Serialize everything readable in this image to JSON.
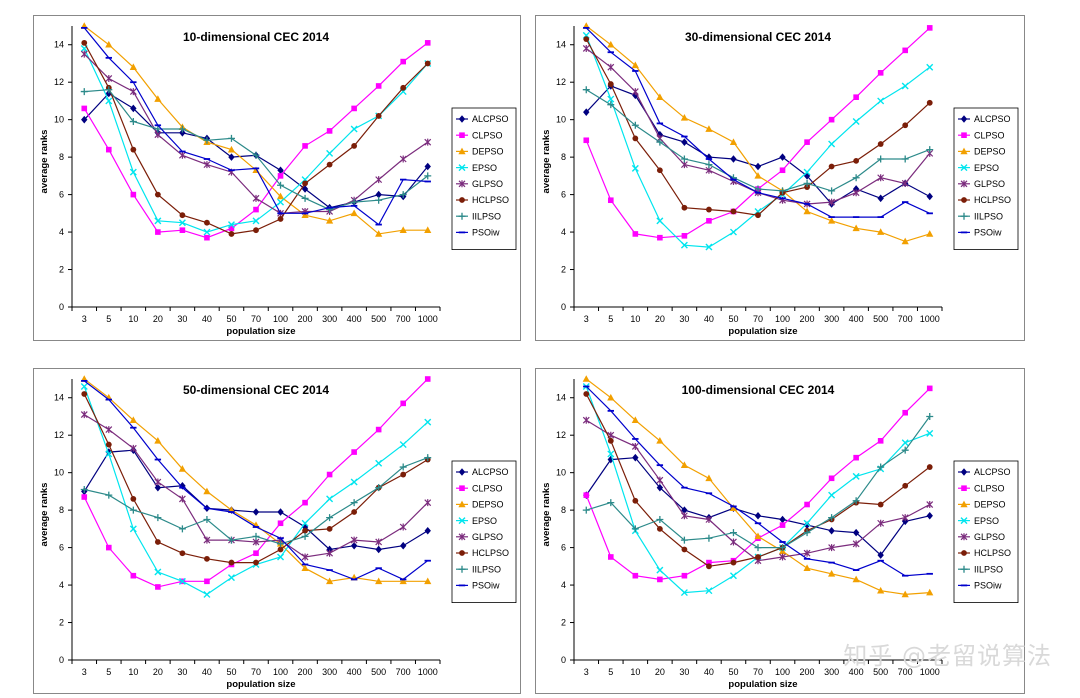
{
  "watermark": "知乎 @老留说算法",
  "chart_data": [
    {
      "type": "line",
      "title": "10-dimensional CEC 2014",
      "xlabel": "population size",
      "ylabel": "average ranks",
      "ylim": [
        0,
        15
      ],
      "yticks": [
        "0",
        "2",
        "4",
        "6",
        "8",
        "10",
        "12",
        "14"
      ],
      "categories": [
        "3",
        "5",
        "10",
        "20",
        "30",
        "40",
        "50",
        "70",
        "100",
        "200",
        "300",
        "400",
        "500",
        "700",
        "1000"
      ],
      "series": [
        {
          "name": "ALCPSO",
          "values": [
            10.0,
            11.4,
            10.6,
            9.3,
            9.3,
            9.0,
            8.0,
            8.1,
            7.3,
            6.3,
            5.3,
            5.6,
            6.0,
            5.9,
            7.5
          ]
        },
        {
          "name": "CLPSO",
          "values": [
            10.6,
            8.4,
            6.0,
            4.0,
            4.1,
            3.7,
            4.2,
            5.2,
            7.0,
            8.6,
            9.4,
            10.6,
            11.8,
            13.1,
            14.1
          ]
        },
        {
          "name": "DEPSO",
          "values": [
            15.0,
            14.0,
            12.8,
            11.1,
            9.6,
            8.8,
            8.4,
            7.3,
            5.9,
            4.9,
            4.6,
            5.0,
            3.9,
            4.1,
            4.1
          ]
        },
        {
          "name": "EPSO",
          "values": [
            13.8,
            11.0,
            7.2,
            4.6,
            4.5,
            4.0,
            4.4,
            4.6,
            5.6,
            6.8,
            8.2,
            9.5,
            10.2,
            11.5,
            13.0
          ]
        },
        {
          "name": "GLPSO",
          "values": [
            13.5,
            12.2,
            11.5,
            9.2,
            8.1,
            7.6,
            7.2,
            5.8,
            5.0,
            5.1,
            5.1,
            5.7,
            6.8,
            7.9,
            8.8
          ]
        },
        {
          "name": "HCLPSO",
          "values": [
            14.1,
            11.7,
            8.4,
            6.0,
            4.9,
            4.5,
            3.9,
            4.1,
            4.7,
            6.6,
            7.6,
            8.6,
            10.2,
            11.7,
            13.0
          ]
        },
        {
          "name": "IILPSO",
          "values": [
            11.5,
            11.6,
            9.9,
            9.5,
            9.5,
            8.9,
            9.0,
            8.1,
            6.5,
            5.8,
            5.2,
            5.6,
            5.7,
            6.0,
            7.0
          ]
        },
        {
          "name": "PSOiw",
          "values": [
            14.9,
            13.3,
            12.0,
            9.7,
            8.3,
            7.9,
            7.3,
            7.4,
            5.0,
            5.0,
            5.3,
            5.4,
            4.4,
            6.8,
            6.7
          ]
        }
      ]
    },
    {
      "type": "line",
      "title": "30-dimensional CEC 2014",
      "xlabel": "population size",
      "ylabel": "average ranks",
      "ylim": [
        0,
        15
      ],
      "yticks": [
        "0",
        "2",
        "4",
        "6",
        "8",
        "10",
        "12",
        "14"
      ],
      "categories": [
        "3",
        "5",
        "10",
        "20",
        "30",
        "40",
        "50",
        "70",
        "100",
        "200",
        "300",
        "400",
        "500",
        "700",
        "1000"
      ],
      "series": [
        {
          "name": "ALCPSO",
          "values": [
            10.4,
            11.8,
            11.3,
            9.2,
            8.8,
            8.0,
            7.9,
            7.5,
            8.0,
            7.0,
            5.5,
            6.3,
            5.8,
            6.6,
            5.9
          ]
        },
        {
          "name": "CLPSO",
          "values": [
            8.9,
            5.7,
            3.9,
            3.7,
            3.8,
            4.6,
            5.1,
            6.3,
            7.3,
            8.8,
            10.0,
            11.2,
            12.5,
            13.7,
            14.9
          ]
        },
        {
          "name": "DEPSO",
          "values": [
            15.0,
            14.0,
            12.9,
            11.2,
            10.1,
            9.5,
            8.8,
            7.0,
            6.2,
            5.1,
            4.6,
            4.2,
            4.0,
            3.5,
            3.9
          ]
        },
        {
          "name": "EPSO",
          "values": [
            14.5,
            11.1,
            7.4,
            4.6,
            3.3,
            3.2,
            4.0,
            5.1,
            6.0,
            7.2,
            8.7,
            9.9,
            11.0,
            11.8,
            12.8
          ]
        },
        {
          "name": "GLPSO",
          "values": [
            13.8,
            12.8,
            11.5,
            9.0,
            7.6,
            7.3,
            6.7,
            6.1,
            5.7,
            5.5,
            5.6,
            6.1,
            6.9,
            6.6,
            8.2
          ]
        },
        {
          "name": "HCLPSO",
          "values": [
            14.3,
            11.9,
            9.0,
            7.3,
            5.3,
            5.2,
            5.1,
            4.9,
            6.1,
            6.4,
            7.5,
            7.8,
            8.7,
            9.7,
            10.9
          ]
        },
        {
          "name": "IILPSO",
          "values": [
            11.6,
            10.8,
            9.7,
            8.8,
            7.9,
            7.6,
            6.9,
            6.3,
            6.2,
            6.6,
            6.2,
            6.9,
            7.9,
            7.9,
            8.4
          ]
        },
        {
          "name": "PSOiw",
          "values": [
            14.9,
            13.6,
            12.6,
            9.8,
            9.1,
            7.9,
            6.8,
            6.1,
            5.8,
            5.5,
            4.8,
            4.8,
            4.8,
            5.6,
            5.0
          ]
        }
      ]
    },
    {
      "type": "line",
      "title": "50-dimensional CEC 2014",
      "xlabel": "population size",
      "ylabel": "average ranks",
      "ylim": [
        0,
        15
      ],
      "yticks": [
        "0",
        "2",
        "4",
        "6",
        "8",
        "10",
        "12",
        "14"
      ],
      "categories": [
        "3",
        "5",
        "10",
        "20",
        "30",
        "40",
        "50",
        "70",
        "100",
        "200",
        "300",
        "400",
        "500",
        "700",
        "1000"
      ],
      "series": [
        {
          "name": "ALCPSO",
          "values": [
            9.0,
            11.1,
            11.2,
            9.2,
            9.3,
            8.1,
            8.0,
            7.9,
            7.9,
            7.1,
            5.9,
            6.1,
            5.9,
            6.1,
            6.9
          ]
        },
        {
          "name": "CLPSO",
          "values": [
            8.7,
            6.0,
            4.5,
            3.9,
            4.2,
            4.2,
            5.1,
            5.7,
            7.3,
            8.4,
            9.9,
            11.1,
            12.3,
            13.7,
            15.0
          ]
        },
        {
          "name": "DEPSO",
          "values": [
            15.0,
            14.0,
            12.8,
            11.7,
            10.2,
            9.0,
            8.0,
            7.2,
            6.2,
            4.9,
            4.2,
            4.4,
            4.2,
            4.2,
            4.2
          ]
        },
        {
          "name": "EPSO",
          "values": [
            14.6,
            11.0,
            7.0,
            4.7,
            4.2,
            3.5,
            4.4,
            5.1,
            5.5,
            7.3,
            8.6,
            9.5,
            10.5,
            11.5,
            12.7
          ]
        },
        {
          "name": "GLPSO",
          "values": [
            13.1,
            12.3,
            11.3,
            9.5,
            8.6,
            6.4,
            6.4,
            6.3,
            6.4,
            5.5,
            5.7,
            6.4,
            6.3,
            7.1,
            8.4
          ]
        },
        {
          "name": "HCLPSO",
          "values": [
            14.2,
            11.5,
            8.6,
            6.3,
            5.7,
            5.4,
            5.2,
            5.2,
            5.9,
            6.9,
            7.0,
            7.9,
            9.2,
            9.9,
            10.7
          ]
        },
        {
          "name": "IILPSO",
          "values": [
            9.1,
            8.8,
            8.0,
            7.6,
            7.0,
            7.5,
            6.4,
            6.6,
            6.2,
            6.6,
            7.6,
            8.4,
            9.2,
            10.3,
            10.8
          ]
        },
        {
          "name": "PSOiw",
          "values": [
            14.9,
            13.9,
            12.4,
            10.7,
            9.2,
            8.1,
            7.9,
            7.1,
            6.5,
            5.1,
            4.8,
            4.3,
            4.9,
            4.3,
            5.3
          ]
        }
      ]
    },
    {
      "type": "line",
      "title": "100-dimensional CEC 2014",
      "xlabel": "population size",
      "ylabel": "average ranks",
      "ylim": [
        0,
        15
      ],
      "yticks": [
        "0",
        "2",
        "4",
        "6",
        "8",
        "10",
        "12",
        "14"
      ],
      "categories": [
        "3",
        "5",
        "10",
        "20",
        "30",
        "40",
        "50",
        "70",
        "100",
        "200",
        "300",
        "400",
        "500",
        "700",
        "1000"
      ],
      "series": [
        {
          "name": "ALCPSO",
          "values": [
            8.8,
            10.7,
            10.8,
            9.2,
            8.0,
            7.6,
            8.1,
            7.7,
            7.5,
            7.2,
            6.9,
            6.8,
            5.6,
            7.4,
            7.7
          ]
        },
        {
          "name": "CLPSO",
          "values": [
            8.8,
            5.5,
            4.5,
            4.3,
            4.5,
            5.2,
            5.3,
            6.5,
            7.2,
            8.3,
            9.7,
            10.8,
            11.7,
            13.2,
            14.5
          ]
        },
        {
          "name": "DEPSO",
          "values": [
            15.0,
            14.0,
            12.8,
            11.7,
            10.4,
            9.7,
            8.1,
            6.6,
            5.8,
            4.9,
            4.6,
            4.3,
            3.7,
            3.5,
            3.6
          ]
        },
        {
          "name": "EPSO",
          "values": [
            14.6,
            11.0,
            6.9,
            4.8,
            3.6,
            3.7,
            4.5,
            5.5,
            6.0,
            7.3,
            8.8,
            9.8,
            10.2,
            11.6,
            12.1
          ]
        },
        {
          "name": "GLPSO",
          "values": [
            12.8,
            12.0,
            11.4,
            9.6,
            7.7,
            7.5,
            6.3,
            5.3,
            5.5,
            5.7,
            6.0,
            6.2,
            7.3,
            7.6,
            8.3
          ]
        },
        {
          "name": "HCLPSO",
          "values": [
            14.2,
            11.7,
            8.5,
            7.0,
            5.9,
            5.0,
            5.2,
            5.5,
            6.0,
            6.9,
            7.5,
            8.4,
            8.3,
            9.3,
            10.3
          ]
        },
        {
          "name": "IILPSO",
          "values": [
            8.0,
            8.4,
            7.0,
            7.5,
            6.4,
            6.5,
            6.8,
            6.0,
            6.0,
            6.8,
            7.6,
            8.5,
            10.3,
            11.2,
            13.0
          ]
        },
        {
          "name": "PSOiw",
          "values": [
            14.6,
            13.3,
            11.8,
            10.4,
            9.2,
            8.9,
            8.2,
            7.3,
            6.3,
            5.4,
            5.2,
            4.8,
            5.3,
            4.5,
            4.6
          ]
        }
      ]
    }
  ],
  "legend_styles": [
    {
      "name": "ALCPSO",
      "color": "#000080",
      "marker": "diamond"
    },
    {
      "name": "CLPSO",
      "color": "#ff00ff",
      "marker": "square"
    },
    {
      "name": "DEPSO",
      "color": "#f2a000",
      "marker": "triangle"
    },
    {
      "name": "EPSO",
      "color": "#00e5ee",
      "marker": "x"
    },
    {
      "name": "GLPSO",
      "color": "#7b2c7d",
      "marker": "star"
    },
    {
      "name": "HCLPSO",
      "color": "#7b1e08",
      "marker": "circle"
    },
    {
      "name": "IILPSO",
      "color": "#2c8a8a",
      "marker": "plus"
    },
    {
      "name": "PSOiw",
      "color": "#0000cc",
      "marker": "dash"
    }
  ]
}
